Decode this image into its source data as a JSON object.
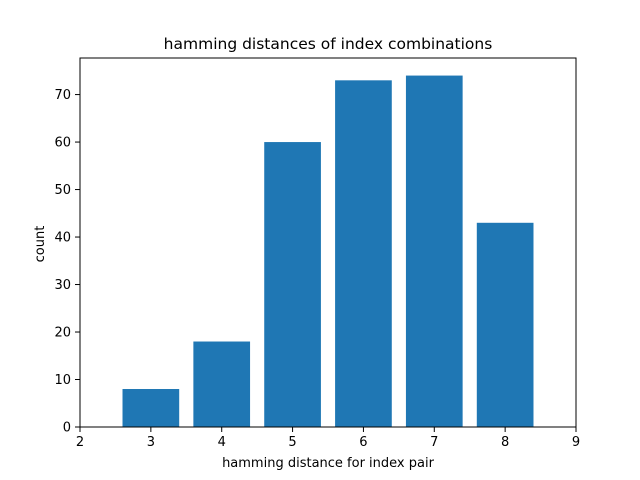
{
  "chart_data": {
    "type": "bar",
    "title": "hamming distances of index combinations",
    "xlabel": "hamming distance for index pair",
    "ylabel": "count",
    "x": [
      3,
      4,
      5,
      6,
      7,
      8
    ],
    "values": [
      8,
      18,
      60,
      73,
      74,
      43
    ],
    "xlim": [
      2,
      9
    ],
    "ylim": [
      0,
      77.7
    ],
    "xticks": [
      2,
      3,
      4,
      5,
      6,
      7,
      8,
      9
    ],
    "yticks": [
      0,
      10,
      20,
      30,
      40,
      50,
      60,
      70
    ],
    "bar_width": 0.8,
    "grid": false,
    "legend": "none",
    "bar_color": "#1f77b4"
  }
}
